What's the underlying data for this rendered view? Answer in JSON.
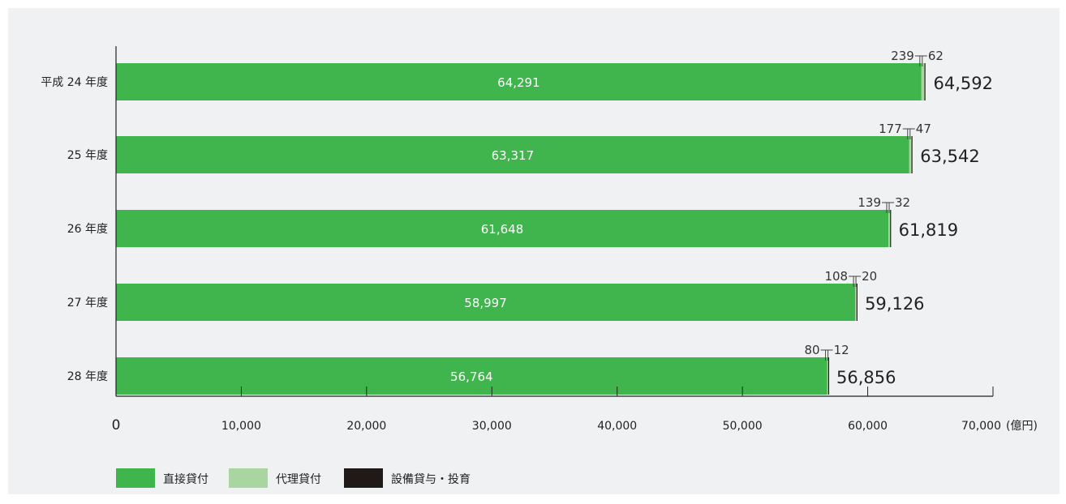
{
  "chart_data": {
    "type": "bar",
    "orientation": "horizontal",
    "stacked": true,
    "categories": [
      "平成 24 年度",
      "25 年度",
      "26 年度",
      "27 年度",
      "28 年度"
    ],
    "series": [
      {
        "name": "直接貸付",
        "values": [
          64291,
          63317,
          61648,
          58997,
          56764
        ],
        "color": "#41b54d",
        "value_labels": [
          "64,291",
          "63,317",
          "61,648",
          "58,997",
          "56,764"
        ]
      },
      {
        "name": "代理貸付",
        "values": [
          239,
          177,
          139,
          108,
          80
        ],
        "color": "#a8d5a0",
        "value_labels": [
          "239",
          "177",
          "139",
          "108",
          "80"
        ]
      },
      {
        "name": "設備貸与・投育",
        "values": [
          62,
          47,
          32,
          20,
          12
        ],
        "color": "#1f1a17",
        "value_labels": [
          "62",
          "47",
          "32",
          "20",
          "12"
        ]
      }
    ],
    "totals": [
      64592,
      63542,
      61819,
      59126,
      56856
    ],
    "total_labels": [
      "64,592",
      "63,542",
      "61,819",
      "59,126",
      "56,856"
    ],
    "x_axis": {
      "min": 0,
      "max": 70000,
      "ticks": [
        0,
        10000,
        20000,
        30000,
        40000,
        50000,
        60000,
        70000
      ],
      "tick_labels": [
        "0",
        "10,000",
        "20,000",
        "30,000",
        "40,000",
        "50,000",
        "60,000",
        "70,000"
      ],
      "unit": "(億円)"
    },
    "grid": false,
    "legend": "bottom-left"
  }
}
